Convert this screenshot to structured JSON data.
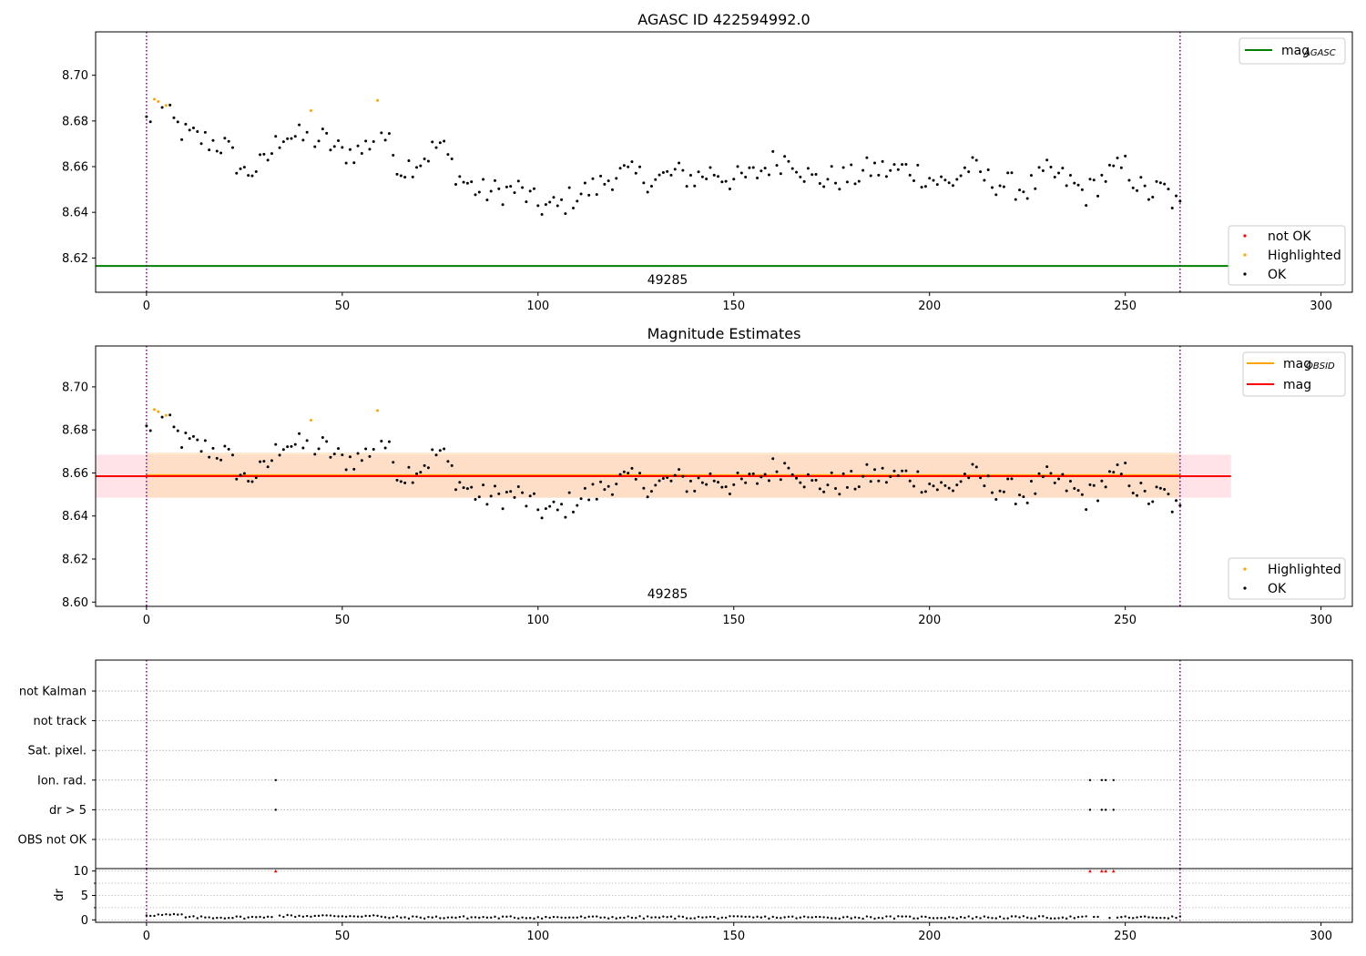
{
  "chart_data": [
    {
      "type": "scatter",
      "title": "AGASC ID 422594992.0",
      "xlim": [
        -13,
        308
      ],
      "ylim": [
        8.605,
        8.719
      ],
      "xticks": [
        0,
        50,
        100,
        150,
        200,
        250,
        300
      ],
      "yticks": [
        8.62,
        8.64,
        8.66,
        8.68,
        8.7
      ],
      "ytick_labels": [
        "8.62",
        "8.64",
        "8.66",
        "8.68",
        "8.70"
      ],
      "obsid_label": "49285",
      "hlines": [
        {
          "name": "mag",
          "subscript": "AGASC",
          "y": 8.6165,
          "x_end": 277,
          "color": "#008000"
        }
      ],
      "vlines": [
        0,
        264
      ],
      "legend_line": {
        "name": "mag",
        "subscript": "AGASC",
        "placement": "top-right"
      },
      "legend_points": {
        "placement": "bottom-right",
        "entries": [
          {
            "name": "not OK",
            "color": "#ff0000"
          },
          {
            "name": "Highlighted",
            "color": "#ffa500"
          },
          {
            "name": "OK",
            "color": "#000000"
          }
        ]
      }
    },
    {
      "type": "scatter",
      "title": "Magnitude Estimates",
      "xlim": [
        -13,
        308
      ],
      "ylim": [
        8.598,
        8.719
      ],
      "xticks": [
        0,
        50,
        100,
        150,
        200,
        250,
        300
      ],
      "yticks": [
        8.6,
        8.62,
        8.64,
        8.66,
        8.68,
        8.7
      ],
      "ytick_labels": [
        "8.60",
        "8.62",
        "8.64",
        "8.66",
        "8.68",
        "8.70"
      ],
      "obsid_label": "49285",
      "hlines": [
        {
          "name": "mag",
          "subscript": "OBSID",
          "y": 8.659,
          "x_start": 0,
          "x_end": 264,
          "color": "#ffa500"
        },
        {
          "name": "mag",
          "y": 8.6585,
          "x_start": -13,
          "x_end": 277,
          "color": "#ff0000"
        }
      ],
      "bands": [
        {
          "x_start": -13,
          "x_end": 277,
          "y_low": 8.6485,
          "y_high": 8.6685,
          "color": "#ffc0cb"
        },
        {
          "x_start": 0,
          "x_end": 264,
          "y_low": 8.6485,
          "y_high": 8.6695,
          "color": "#ffdab0"
        }
      ],
      "vlines": [
        0,
        264
      ],
      "legend_line": {
        "placement": "top-right",
        "entries": [
          {
            "name": "mag",
            "subscript": "OBSID",
            "color": "#ffa500"
          },
          {
            "name": "mag",
            "color": "#ff0000"
          }
        ]
      },
      "legend_points": {
        "placement": "bottom-right",
        "entries": [
          {
            "name": "Highlighted",
            "color": "#ffa500"
          },
          {
            "name": "OK",
            "color": "#000000"
          }
        ]
      }
    },
    {
      "type": "scatter",
      "title": "",
      "xlim": [
        -13,
        308
      ],
      "xticks": [
        0,
        50,
        100,
        150,
        200,
        250,
        300
      ],
      "categories": [
        "not Kalman",
        "not track",
        "Sat. pixel.",
        "Ion. rad.",
        "dr > 5",
        "OBS not OK"
      ],
      "flags": {
        "Ion. rad.": [
          33,
          241,
          244,
          245,
          247
        ],
        "dr > 5": [
          33,
          241,
          244,
          245,
          247
        ]
      },
      "vlines": [
        0,
        264
      ]
    },
    {
      "type": "scatter",
      "title": "",
      "ylabel": "dr",
      "xlim": [
        -13,
        308
      ],
      "ylim": [
        -0.5,
        10.5
      ],
      "xticks": [
        0,
        50,
        100,
        150,
        200,
        250,
        300
      ],
      "yticks": [
        0,
        5,
        10
      ],
      "ytick_labels": [
        "0",
        "5",
        "10"
      ],
      "capped": [
        33,
        241,
        244,
        245,
        247
      ],
      "vlines": [
        0,
        264
      ]
    }
  ],
  "series_seed": {
    "mag_anchors": [
      [
        0,
        8.68
      ],
      [
        3,
        8.686
      ],
      [
        6,
        8.681
      ],
      [
        10,
        8.674
      ],
      [
        20,
        8.669
      ],
      [
        25,
        8.657
      ],
      [
        30,
        8.661
      ],
      [
        35,
        8.675
      ],
      [
        40,
        8.672
      ],
      [
        45,
        8.672
      ],
      [
        50,
        8.666
      ],
      [
        55,
        8.667
      ],
      [
        60,
        8.676
      ],
      [
        65,
        8.659
      ],
      [
        70,
        8.663
      ],
      [
        75,
        8.67
      ],
      [
        80,
        8.655
      ],
      [
        85,
        8.649
      ],
      [
        90,
        8.649
      ],
      [
        95,
        8.65
      ],
      [
        100,
        8.643
      ],
      [
        105,
        8.642
      ],
      [
        110,
        8.648
      ],
      [
        115,
        8.651
      ],
      [
        120,
        8.657
      ],
      [
        125,
        8.656
      ],
      [
        130,
        8.654
      ],
      [
        135,
        8.657
      ],
      [
        140,
        8.655
      ],
      [
        145,
        8.658
      ],
      [
        150,
        8.654
      ],
      [
        155,
        8.656
      ],
      [
        160,
        8.662
      ],
      [
        165,
        8.664
      ],
      [
        170,
        8.654
      ],
      [
        175,
        8.655
      ],
      [
        180,
        8.655
      ],
      [
        185,
        8.659
      ],
      [
        190,
        8.658
      ],
      [
        195,
        8.659
      ],
      [
        200,
        8.655
      ],
      [
        205,
        8.652
      ],
      [
        210,
        8.66
      ],
      [
        215,
        8.654
      ],
      [
        220,
        8.652
      ],
      [
        225,
        8.65
      ],
      [
        230,
        8.657
      ],
      [
        235,
        8.654
      ],
      [
        240,
        8.648
      ],
      [
        245,
        8.656
      ],
      [
        250,
        8.66
      ],
      [
        255,
        8.648
      ],
      [
        260,
        8.65
      ],
      [
        264,
        8.641
      ]
    ],
    "highlighted": [
      [
        2,
        8.6895
      ],
      [
        3,
        8.6885
      ],
      [
        5,
        8.6868
      ],
      [
        42,
        8.6845
      ],
      [
        59,
        8.689
      ]
    ],
    "count": 265
  }
}
